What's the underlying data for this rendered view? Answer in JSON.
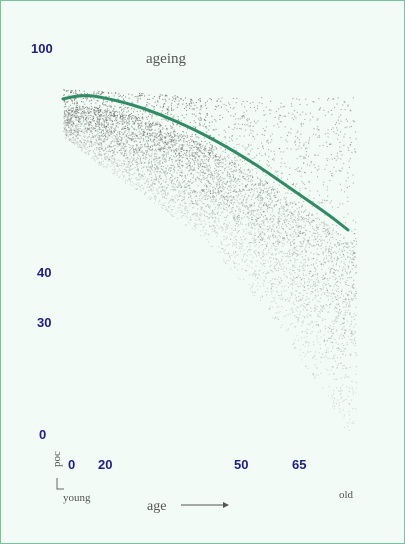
{
  "chart_data": {
    "type": "scatter",
    "title": "ageing",
    "xlabel": "age",
    "x_arrow": "→",
    "x_start_label": "young",
    "x_end_label": "old",
    "ylabel_fragment": "poc",
    "x_ticks": [
      0,
      20,
      50,
      65
    ],
    "y_ticks": [
      100,
      40,
      30,
      0
    ],
    "xlim": [
      0,
      80
    ],
    "ylim": [
      0,
      100
    ],
    "grid": false,
    "series": [
      {
        "kind": "trend-curve",
        "color": "#2e8b63",
        "x": [
          0,
          5,
          10,
          20,
          30,
          40,
          50,
          60,
          70,
          75
        ],
        "y": [
          87,
          88,
          87.5,
          85,
          81,
          76,
          70,
          63,
          56,
          52
        ]
      }
    ],
    "scatter_color": "#555555"
  }
}
